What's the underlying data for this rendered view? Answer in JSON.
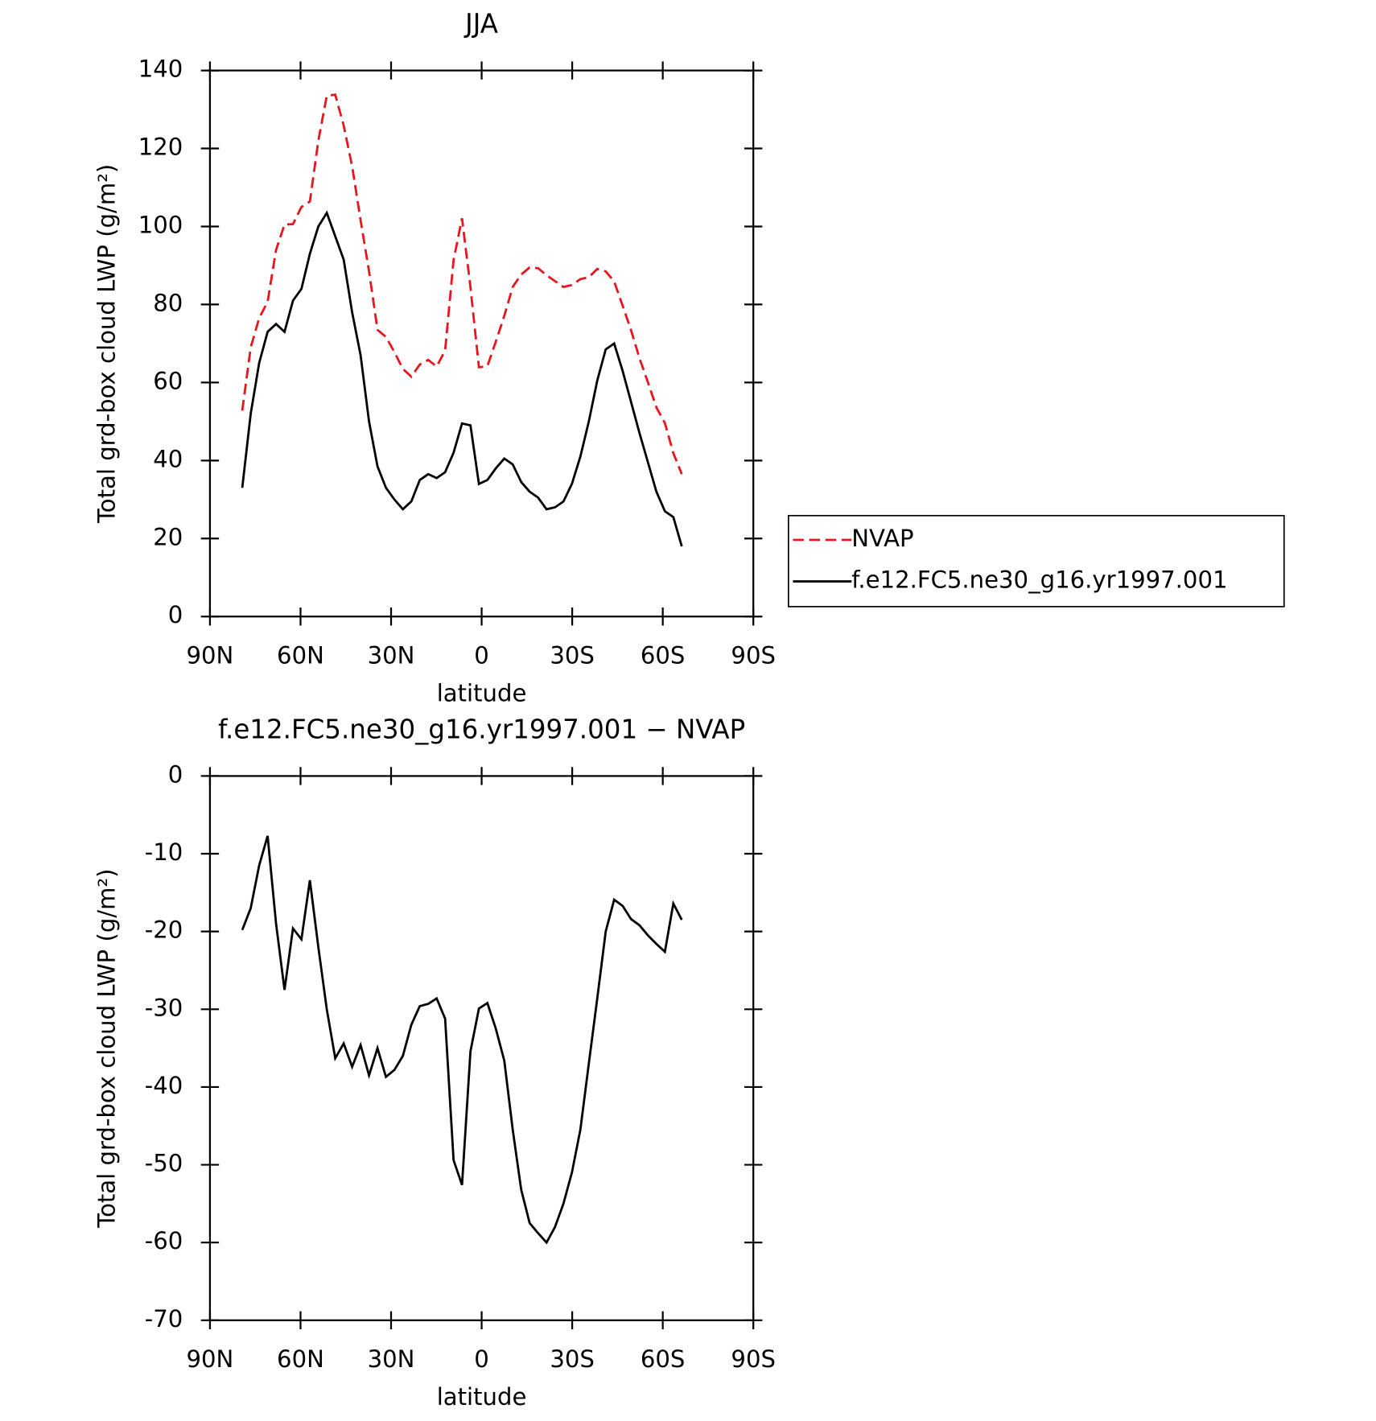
{
  "chart_data": [
    {
      "type": "line",
      "title": "JJA",
      "xlabel": "latitude",
      "ylabel": "Total grd-box cloud LWP (g/m²)",
      "x": [
        79.3,
        76.5,
        73.7,
        70.9,
        68.1,
        65.3,
        62.5,
        59.7,
        56.9,
        54.1,
        51.3,
        48.5,
        45.7,
        42.9,
        40.1,
        37.3,
        34.5,
        31.7,
        28.9,
        26.1,
        23.3,
        20.5,
        17.7,
        14.9,
        12.1,
        9.3,
        6.5,
        3.7,
        0.9,
        -1.9,
        -4.7,
        -7.5,
        -10.3,
        -13.1,
        -15.9,
        -18.7,
        -21.5,
        -24.3,
        -27.1,
        -29.9,
        -32.7,
        -35.5,
        -38.3,
        -41.1,
        -43.9,
        -46.7,
        -49.5,
        -52.3,
        -55.1,
        -57.9,
        -60.7,
        -63.5,
        -66.3
      ],
      "series": [
        {
          "name": "NVAP",
          "color": "#e8141e",
          "line_style": "dashed",
          "values": [
            52.8,
            69,
            76.5,
            80.7,
            94,
            100.5,
            100.6,
            105,
            106.4,
            122,
            133.5,
            133.8,
            125.9,
            115.4,
            101.6,
            88.5,
            73.5,
            71.7,
            67.8,
            63.5,
            61.5,
            64.6,
            65.8,
            64.1,
            68.2,
            91.4,
            102.1,
            84.4,
            63.9,
            64.2,
            70.5,
            77.1,
            84.5,
            87.7,
            89.5,
            89.3,
            87.5,
            86,
            84.5,
            85,
            86.5,
            87,
            89.1,
            88.5,
            85.9,
            79.7,
            73.4,
            66.2,
            60,
            53.6,
            49.6,
            41.9,
            36.5
          ]
        },
        {
          "name": "f.e12.FC5.ne30_g16.yr1997.001",
          "color": "#000000",
          "line_style": "solid",
          "values": [
            33,
            52,
            65,
            73,
            75,
            73,
            81,
            84,
            93,
            100,
            103.5,
            97.5,
            91.5,
            78,
            67,
            50,
            38.5,
            33,
            30,
            27.5,
            29.5,
            35,
            36.5,
            35.5,
            37,
            42,
            49.5,
            49,
            34,
            35,
            38,
            40.5,
            39,
            34.5,
            32,
            30.5,
            27.5,
            28,
            29.5,
            34,
            41,
            50,
            60.5,
            68.5,
            70,
            63,
            55,
            47,
            39.5,
            32,
            27,
            25.5,
            18
          ]
        }
      ],
      "xlim": [
        90,
        -90
      ],
      "xticks": [
        {
          "value": 90,
          "label": "90N"
        },
        {
          "value": 60,
          "label": "60N"
        },
        {
          "value": 30,
          "label": "30N"
        },
        0,
        {
          "value": -30,
          "label": "30S"
        },
        {
          "value": -60,
          "label": "60S"
        },
        {
          "value": -90,
          "label": "90S"
        }
      ],
      "ylim": [
        0,
        140
      ],
      "yticks": [
        0,
        20,
        40,
        60,
        80,
        100,
        120,
        140
      ],
      "legend": "right"
    },
    {
      "type": "line",
      "title": "f.e12.FC5.ne30_g16.yr1997.001 − NVAP",
      "xlabel": "latitude",
      "ylabel": "Total grd-box cloud LWP (g/m²)",
      "x": [
        79.3,
        76.5,
        73.7,
        70.9,
        68.1,
        65.3,
        62.5,
        59.7,
        56.9,
        54.1,
        51.3,
        48.5,
        45.7,
        42.9,
        40.1,
        37.3,
        34.5,
        31.7,
        28.9,
        26.1,
        23.3,
        20.5,
        17.7,
        14.9,
        12.1,
        9.3,
        6.5,
        3.7,
        0.9,
        -1.9,
        -4.7,
        -7.5,
        -10.3,
        -13.1,
        -15.9,
        -18.7,
        -21.5,
        -24.3,
        -27.1,
        -29.9,
        -32.7,
        -35.5,
        -38.3,
        -41.1,
        -43.9,
        -46.7,
        -49.5,
        -52.3,
        -55.1,
        -57.9,
        -60.7,
        -63.5,
        -66.3
      ],
      "color": "#000000",
      "values": [
        -19.8,
        -17,
        -11.5,
        -7.7,
        -19,
        -27.5,
        -19.6,
        -21,
        -13.4,
        -22,
        -30,
        -36.3,
        -34.4,
        -37.4,
        -34.6,
        -38.5,
        -35,
        -38.7,
        -37.8,
        -36,
        -32,
        -29.6,
        -29.3,
        -28.6,
        -31.2,
        -49.4,
        -52.6,
        -35.4,
        -29.9,
        -29.2,
        -32.5,
        -36.6,
        -45.5,
        -53.2,
        -57.5,
        -58.8,
        -60,
        -58,
        -55,
        -51,
        -45.5,
        -37,
        -28.6,
        -20,
        -15.9,
        -16.7,
        -18.4,
        -19.2,
        -20.5,
        -21.6,
        -22.6,
        -16.4,
        -18.5
      ],
      "xlim": [
        90,
        -90
      ],
      "xticks": [
        {
          "value": 90,
          "label": "90N"
        },
        {
          "value": 60,
          "label": "60N"
        },
        {
          "value": 30,
          "label": "30N"
        },
        0,
        {
          "value": -30,
          "label": "30S"
        },
        {
          "value": -60,
          "label": "60S"
        },
        {
          "value": -90,
          "label": "90S"
        }
      ],
      "ylim": [
        -70,
        0
      ],
      "yticks": [
        -70,
        -60,
        -50,
        -40,
        -30,
        -20,
        -10,
        0
      ]
    }
  ]
}
